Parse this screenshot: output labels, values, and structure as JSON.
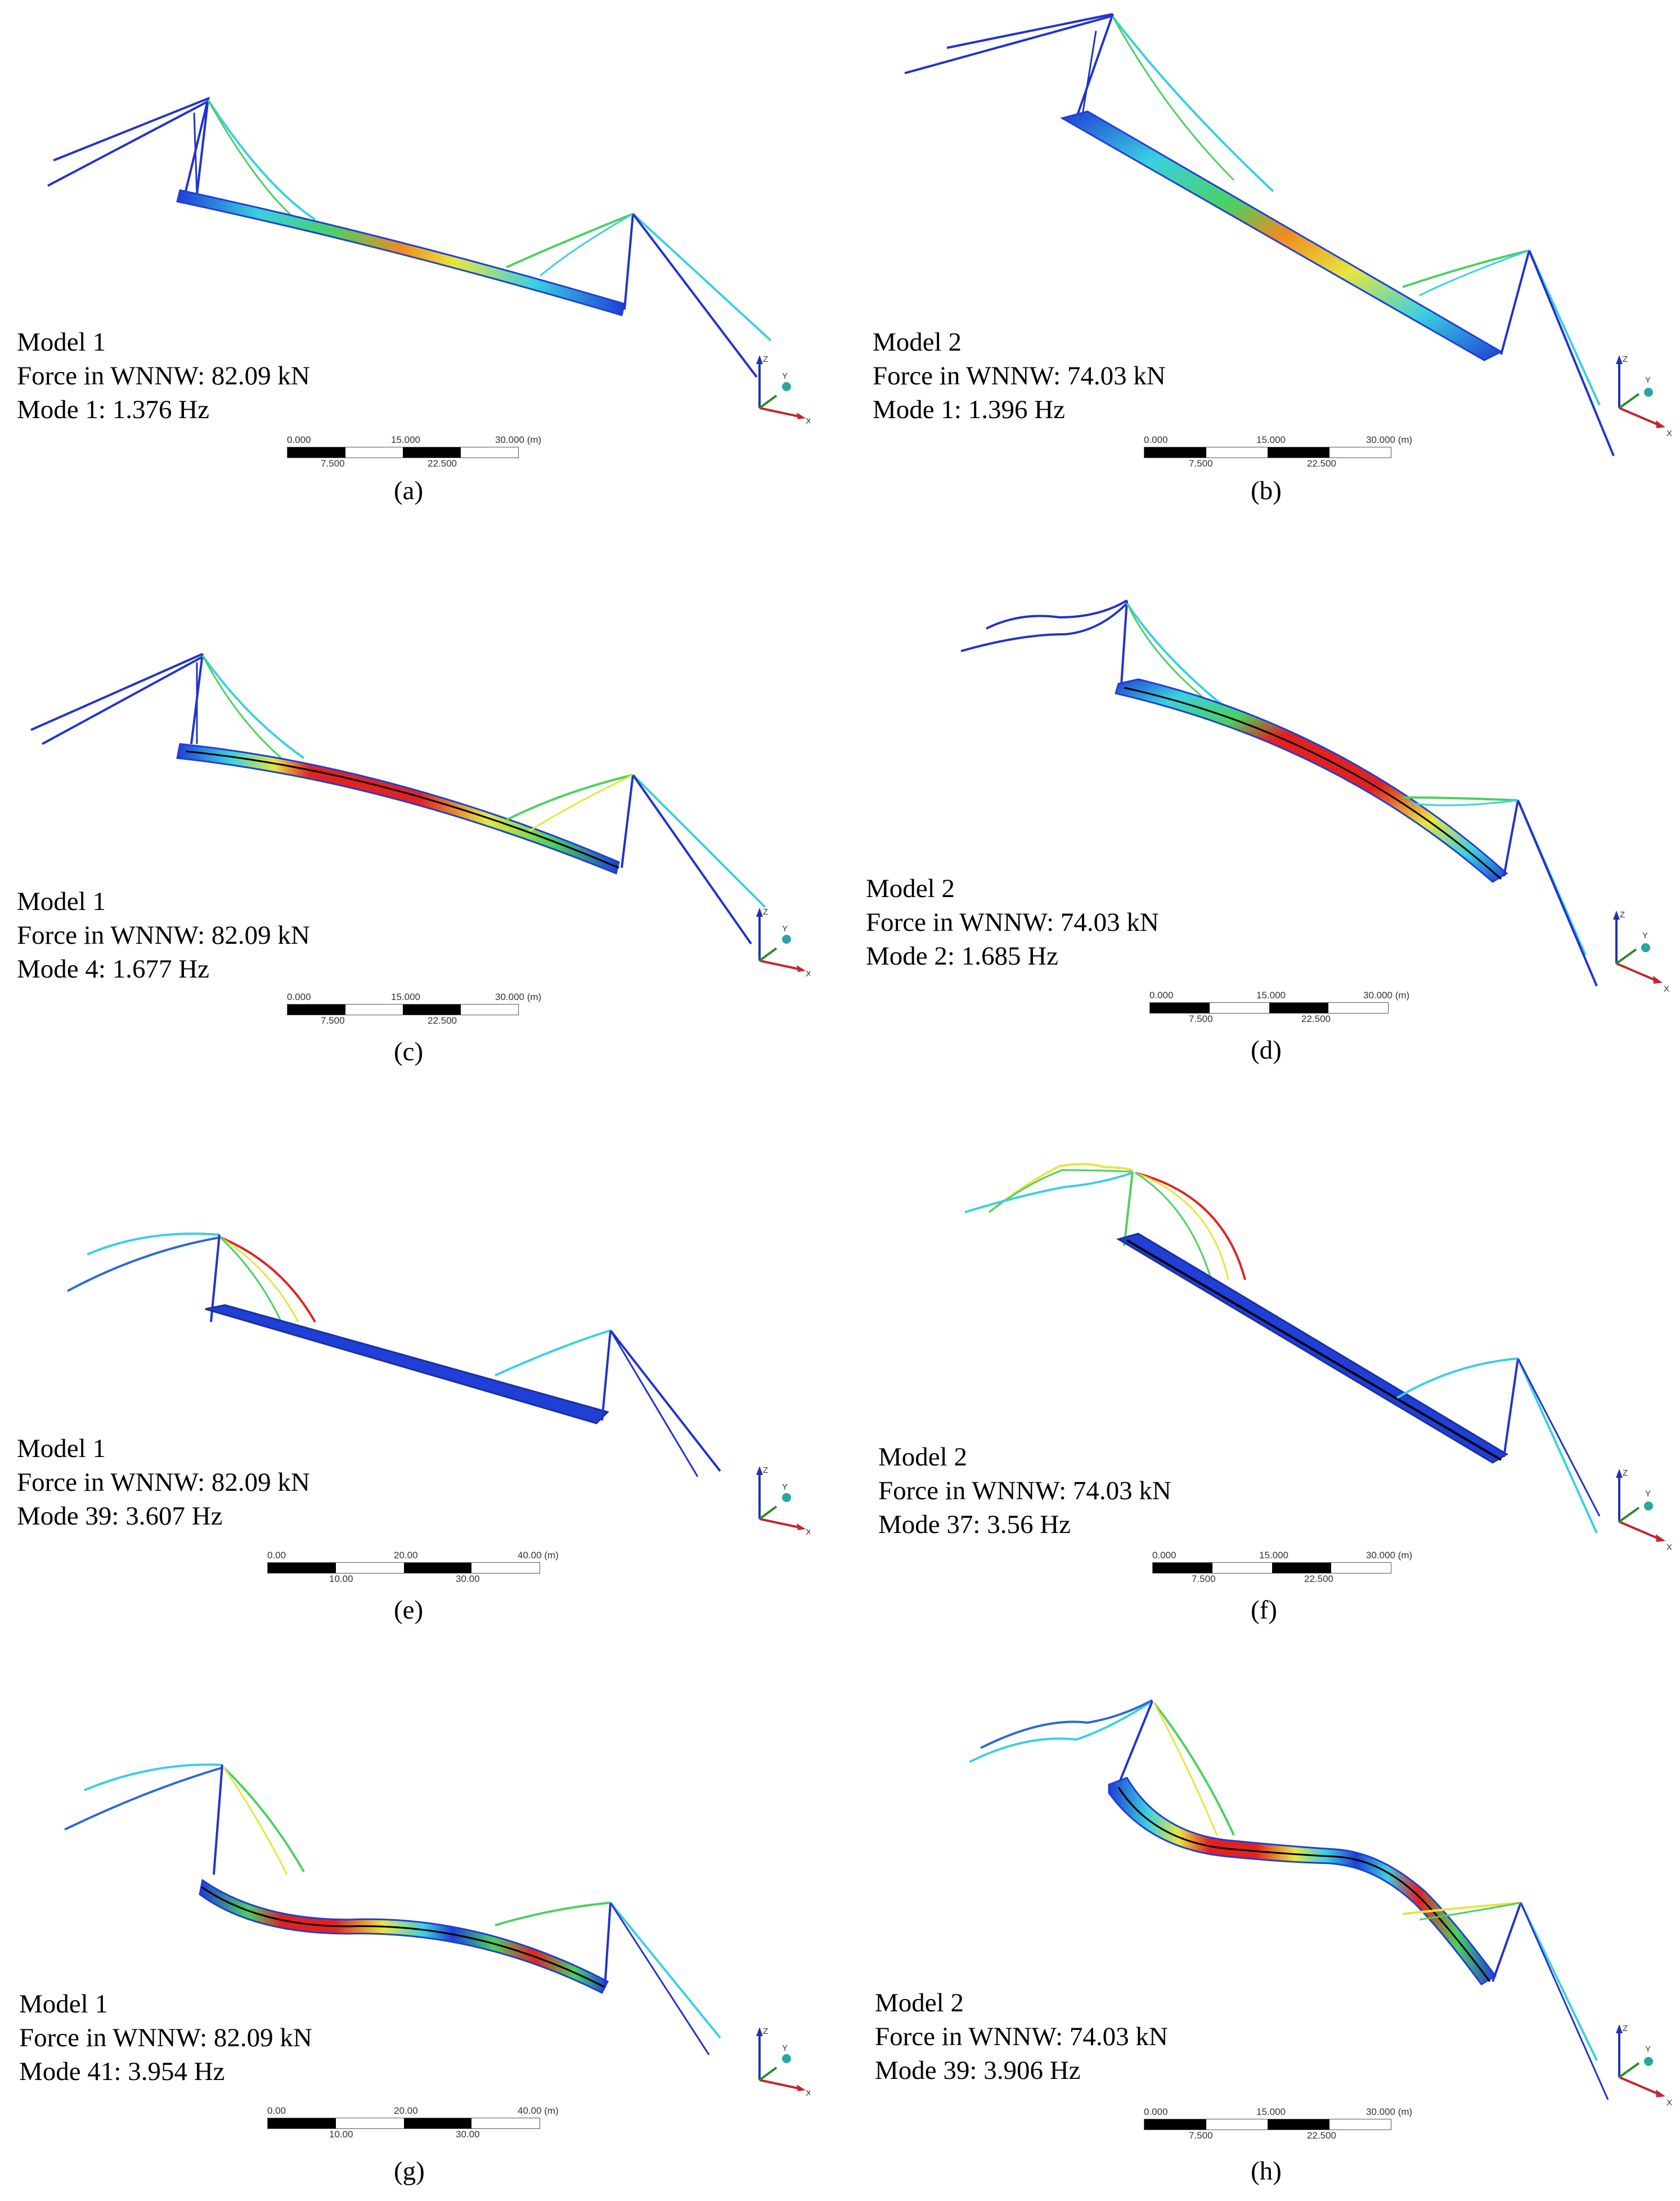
{
  "panels": [
    {
      "id": "a",
      "model": "Model 1",
      "force": "Force in WNNW: 82.09 kN",
      "mode": "Mode 1: 1.376 Hz",
      "caption": "(a)",
      "scale": {
        "top": [
          "0.000",
          "15.000",
          "30.000 (m)"
        ],
        "bottom": [
          "7.500",
          "22.500"
        ]
      }
    },
    {
      "id": "b",
      "model": "Model 2",
      "force": "Force in WNNW: 74.03 kN",
      "mode": "Mode 1: 1.396 Hz",
      "caption": "(b)",
      "scale": {
        "top": [
          "0.000",
          "15.000",
          "30.000 (m)"
        ],
        "bottom": [
          "7.500",
          "22.500"
        ]
      }
    },
    {
      "id": "c",
      "model": "Model 1",
      "force": "Force in WNNW: 82.09 kN",
      "mode": "Mode 4: 1.677 Hz",
      "caption": "(c)",
      "scale": {
        "top": [
          "0.000",
          "15.000",
          "30.000 (m)"
        ],
        "bottom": [
          "7.500",
          "22.500"
        ]
      }
    },
    {
      "id": "d",
      "model": "Model 2",
      "force": "Force in WNNW: 74.03 kN",
      "mode": "Mode 2: 1.685 Hz",
      "caption": "(d)",
      "scale": {
        "top": [
          "0.000",
          "15.000",
          "30.000 (m)"
        ],
        "bottom": [
          "7.500",
          "22.500"
        ]
      }
    },
    {
      "id": "e",
      "model": "Model 1",
      "force": "Force in WNNW: 82.09 kN",
      "mode": "Mode 39: 3.607 Hz",
      "caption": "(e)",
      "scale": {
        "top": [
          "0.00",
          "20.00",
          "40.00 (m)"
        ],
        "bottom": [
          "10.00",
          "30.00"
        ]
      }
    },
    {
      "id": "f",
      "model": "Model 2",
      "force": "Force in WNNW: 74.03 kN",
      "mode": "Mode 37: 3.56 Hz",
      "caption": "(f)",
      "scale": {
        "top": [
          "0.000",
          "15.000",
          "30.000 (m)"
        ],
        "bottom": [
          "7.500",
          "22.500"
        ]
      }
    },
    {
      "id": "g",
      "model": "Model 1",
      "force": "Force in WNNW: 82.09 kN",
      "mode": "Mode 41: 3.954 Hz",
      "caption": "(g)",
      "scale": {
        "top": [
          "0.00",
          "20.00",
          "40.00 (m)"
        ],
        "bottom": [
          "10.00",
          "30.00"
        ]
      }
    },
    {
      "id": "h",
      "model": "Model 2",
      "force": "Force in WNNW: 74.03 kN",
      "mode": "Mode 39: 3.906 Hz",
      "caption": "(h)",
      "scale": {
        "top": [
          "0.000",
          "15.000",
          "30.000 (m)"
        ],
        "bottom": [
          "7.500",
          "22.500"
        ]
      }
    }
  ],
  "axis_labels": {
    "x": "X",
    "y": "Y",
    "z": "Z"
  },
  "colors": {
    "blue": "#1f3fd6",
    "cyan": "#3ad0e0",
    "green": "#4cd060",
    "yellow": "#e6e640",
    "orange": "#f08a20",
    "red": "#e22222",
    "axis_x": "#c0272d",
    "axis_y": "#2a8a2a",
    "axis_z": "#2233aa"
  }
}
